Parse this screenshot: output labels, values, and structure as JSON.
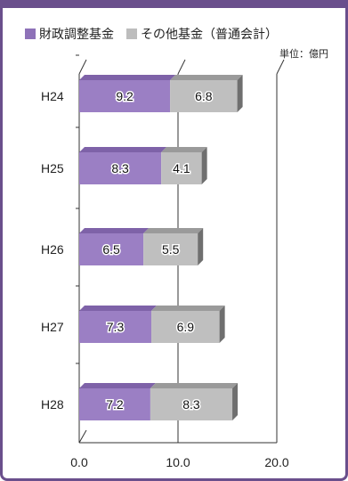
{
  "colors": {
    "frame": "#6a4f8c",
    "series1": "#9b7fc4",
    "series1_top": "#7e62a8",
    "series2": "#bfbfbf",
    "series2_top": "#9a9a9a",
    "axis": "#333333"
  },
  "legend": [
    {
      "label": "財政調整基金",
      "color": "#8e72b8"
    },
    {
      "label": "その他基金（普通会計）",
      "color": "#bdbdbd"
    }
  ],
  "unit": "単位：億円",
  "chart_data": {
    "type": "bar",
    "orientation": "horizontal",
    "stacked": true,
    "categories": [
      "H24",
      "H25",
      "H26",
      "H27",
      "H28"
    ],
    "series": [
      {
        "name": "財政調整基金",
        "values": [
          9.2,
          8.3,
          6.5,
          7.3,
          7.2
        ]
      },
      {
        "name": "その他基金（普通会計）",
        "values": [
          6.8,
          4.1,
          5.5,
          6.9,
          8.3
        ]
      }
    ],
    "xlim": [
      0,
      20
    ],
    "xticks": [
      "0.0",
      "10.0",
      "20.0"
    ],
    "tick_values": [
      0,
      10,
      20
    ]
  }
}
